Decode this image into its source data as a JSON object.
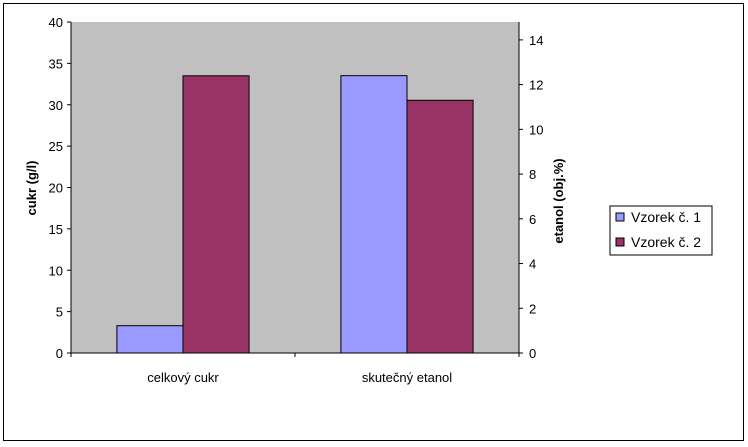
{
  "chart_data": {
    "type": "bar",
    "categories": [
      "celkový cukr",
      "skutečný etanol"
    ],
    "series": [
      {
        "name": "Vzorek č. 1",
        "values": [
          3.3,
          12.4
        ],
        "color": "#9999ff"
      },
      {
        "name": "Vzorek č. 2",
        "values": [
          33.5,
          11.3
        ],
        "color": "#993366"
      }
    ],
    "series_axis": [
      "left",
      "right"
    ],
    "ylabel": "cukr (g/l)",
    "ylabel_right": "etanol (obj.%)",
    "ylim": [
      0,
      40
    ],
    "ylim_right": [
      0,
      14.8
    ],
    "yticks": [
      0,
      5,
      10,
      15,
      20,
      25,
      30,
      35,
      40
    ],
    "yticks_right": [
      0,
      2,
      4,
      6,
      8,
      10,
      12,
      14
    ],
    "grid": false,
    "plot_background": "#c0c0c0",
    "legend_position": "right"
  }
}
